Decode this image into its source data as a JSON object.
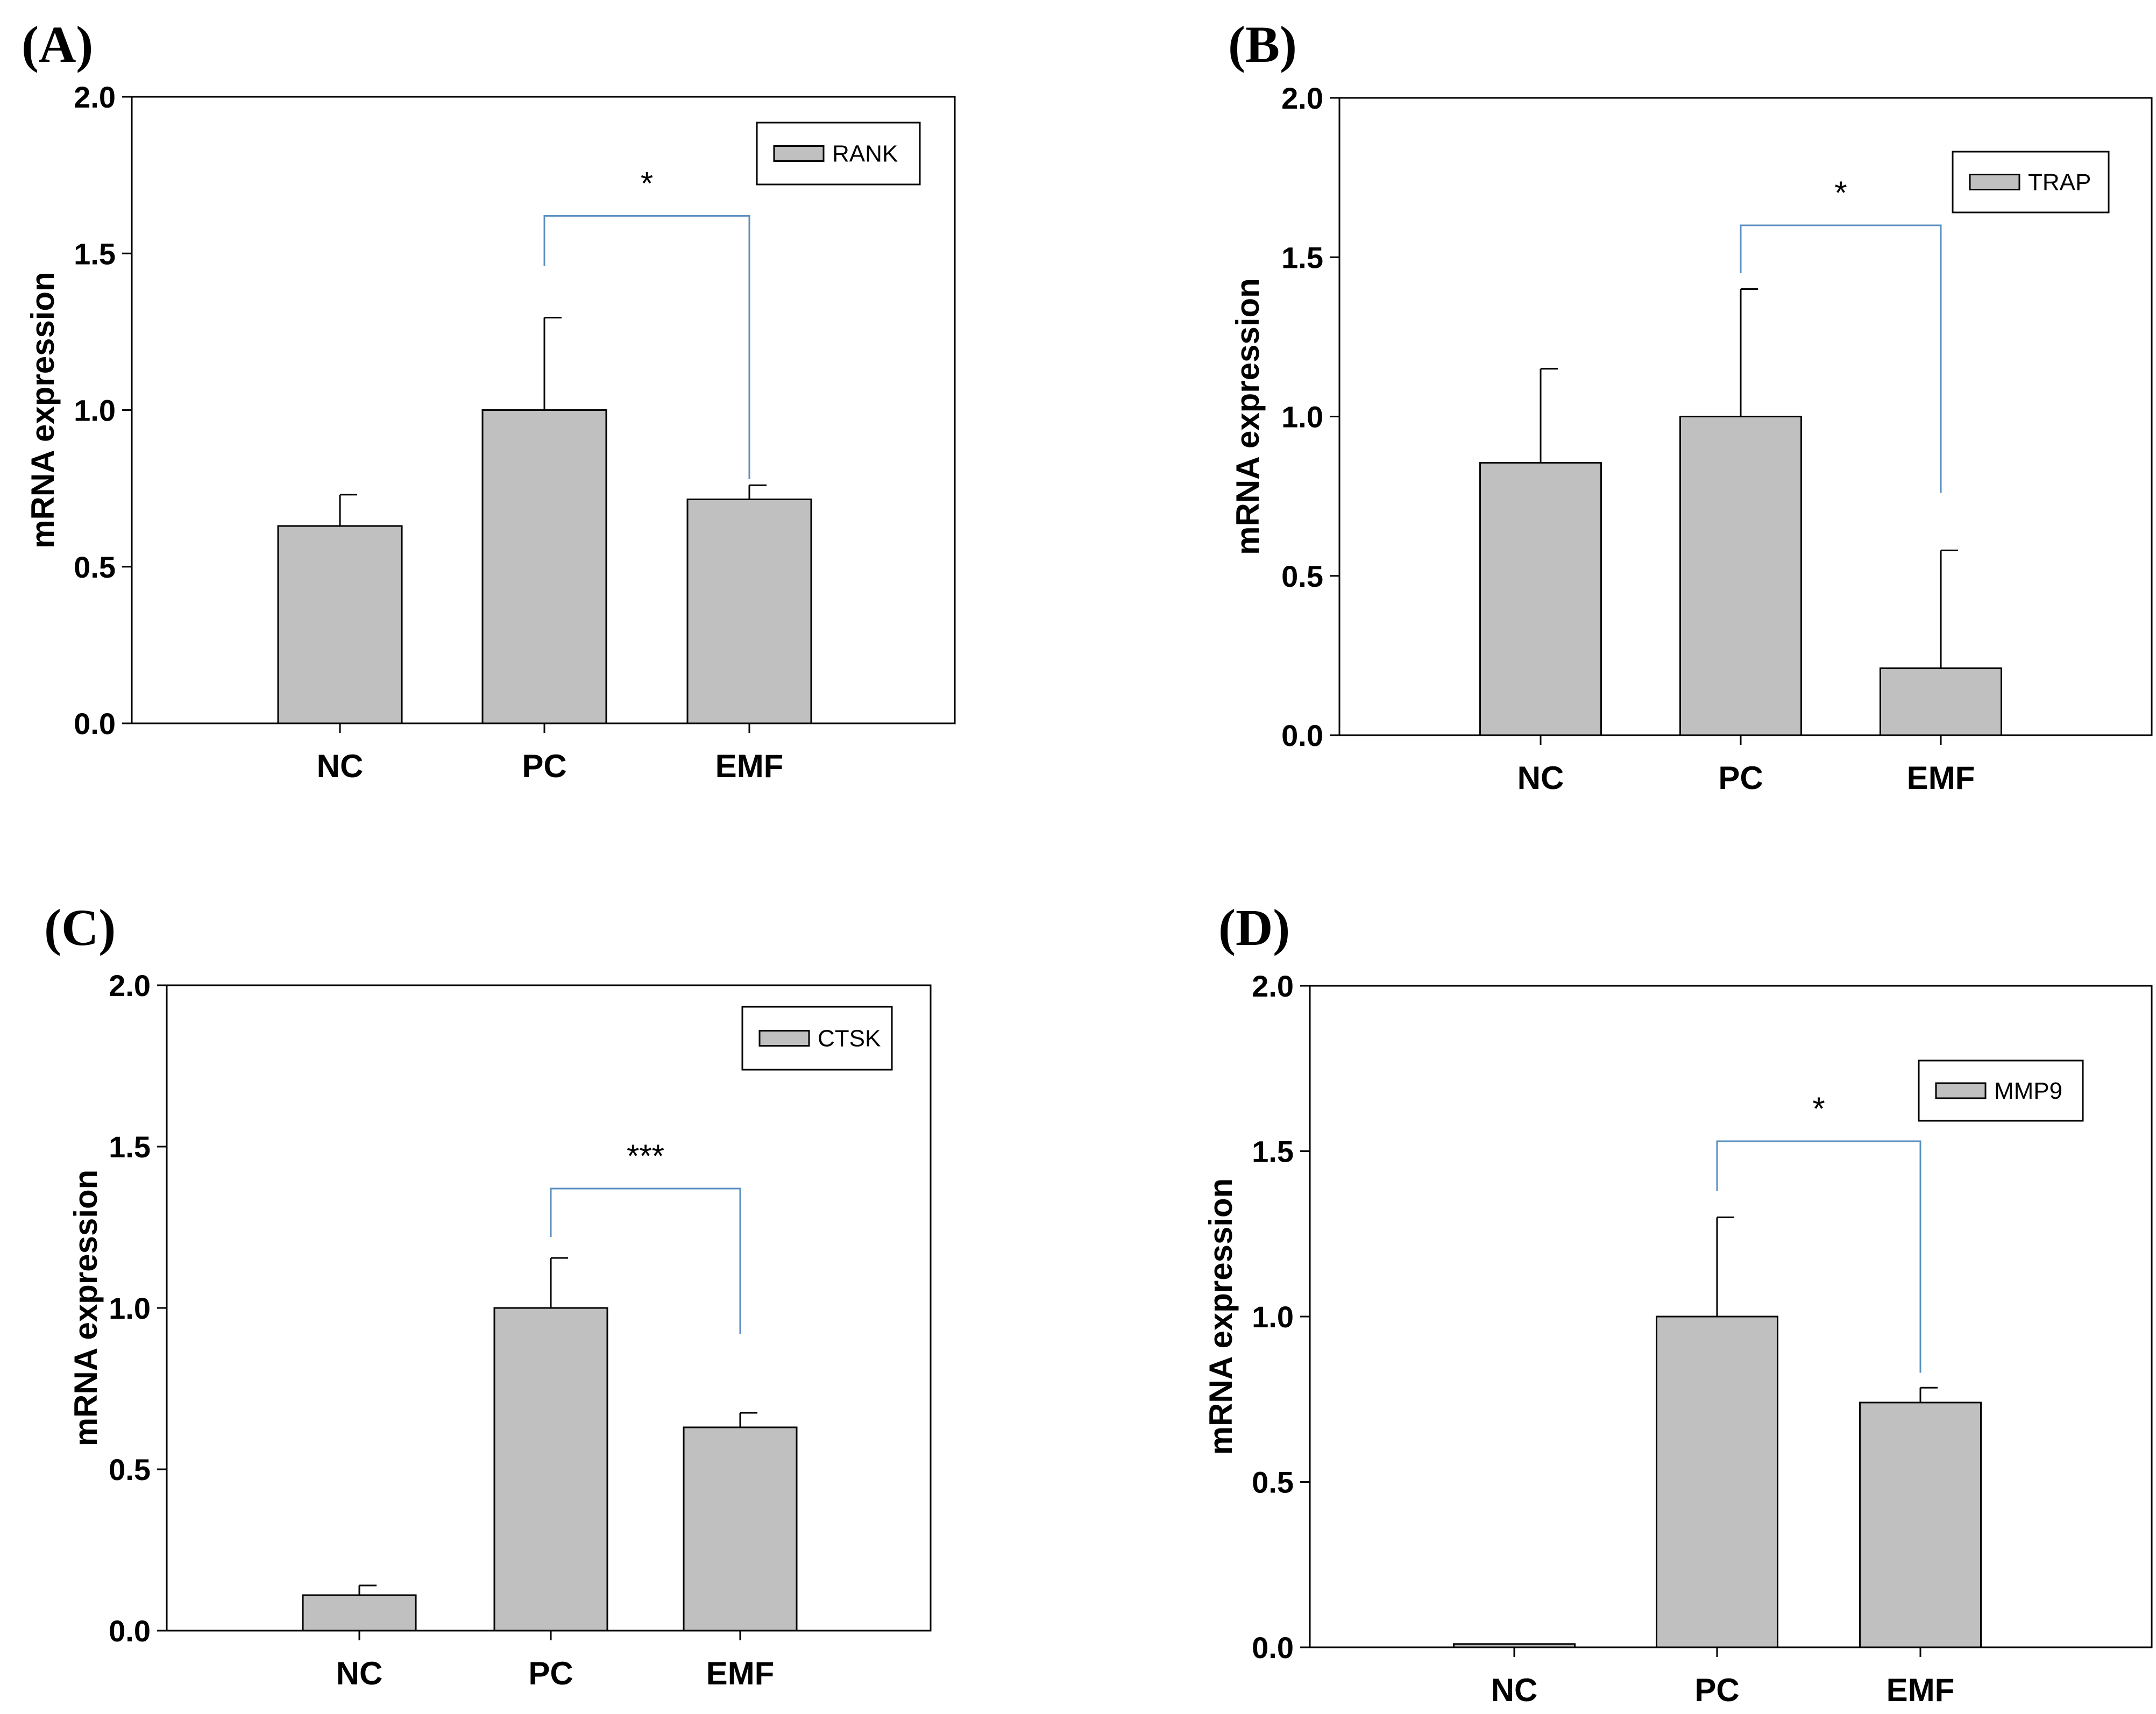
{
  "figure": {
    "background": "#ffffff",
    "bar_fill": "#c0c0c0",
    "bar_stroke": "#000000",
    "bracket_color": "#5b8fc0"
  },
  "chart_data": [
    {
      "panel_label": "(A)",
      "type": "bar",
      "categories": [
        "NC",
        "PC",
        "EMF"
      ],
      "series": [
        {
          "name": "RANK",
          "values": [
            0.63,
            1.0,
            0.715
          ],
          "errors": [
            0.1,
            0.295,
            0.045
          ]
        }
      ],
      "ylabel": "mRNA expression",
      "xlabel": "",
      "ylim": [
        0,
        2.0
      ],
      "yticks": [
        0.0,
        0.5,
        1.0,
        1.5,
        2.0
      ],
      "ytick_labels": [
        "0.0",
        "0.5",
        "1.0",
        "1.5",
        "2.0"
      ],
      "legend_placement": "top-right",
      "significance": {
        "from": "PC",
        "to": "EMF",
        "label": "*",
        "bracket_level": 1.62,
        "left_drop": 1.46,
        "right_drop": 0.78
      }
    },
    {
      "panel_label": "(B)",
      "type": "bar",
      "categories": [
        "NC",
        "PC",
        "EMF"
      ],
      "series": [
        {
          "name": "TRAP",
          "values": [
            0.855,
            1.0,
            0.21
          ],
          "errors": [
            0.295,
            0.4,
            0.37
          ]
        }
      ],
      "ylabel": "mRNA expression",
      "xlabel": "",
      "ylim": [
        0,
        2.0
      ],
      "yticks": [
        0.0,
        0.5,
        1.0,
        1.5,
        2.0
      ],
      "ytick_labels": [
        "0.0",
        "0.5",
        "1.0",
        "1.5",
        "2.0"
      ],
      "legend_placement": "top-right",
      "significance": {
        "from": "PC",
        "to": "EMF",
        "label": "*",
        "bracket_level": 1.6,
        "left_drop": 1.45,
        "right_drop": 0.76
      }
    },
    {
      "panel_label": "(C)",
      "type": "bar",
      "categories": [
        "NC",
        "PC",
        "EMF"
      ],
      "series": [
        {
          "name": "CTSK",
          "values": [
            0.11,
            1.0,
            0.63
          ],
          "errors": [
            0.03,
            0.155,
            0.045
          ]
        }
      ],
      "ylabel": "mRNA expression",
      "xlabel": "",
      "ylim": [
        0,
        2.0
      ],
      "yticks": [
        0.0,
        0.5,
        1.0,
        1.5,
        2.0
      ],
      "ytick_labels": [
        "0.0",
        "0.5",
        "1.0",
        "1.5",
        "2.0"
      ],
      "legend_placement": "top-right",
      "significance": {
        "from": "PC",
        "to": "EMF",
        "label": "***",
        "bracket_level": 1.37,
        "left_drop": 1.22,
        "right_drop": 0.92
      }
    },
    {
      "panel_label": "(D)",
      "type": "bar",
      "categories": [
        "NC",
        "PC",
        "EMF"
      ],
      "series": [
        {
          "name": "MMP9",
          "values": [
            0.01,
            1.0,
            0.74
          ],
          "errors": [
            0.0,
            0.3,
            0.045
          ]
        }
      ],
      "ylabel": "mRNA expression",
      "xlabel": "",
      "ylim": [
        0,
        2.0
      ],
      "yticks": [
        0.0,
        0.5,
        1.0,
        1.5,
        2.0
      ],
      "ytick_labels": [
        "0.0",
        "0.5",
        "1.0",
        "1.5",
        "2.0"
      ],
      "legend_placement": "top-right",
      "significance": {
        "from": "PC",
        "to": "EMF",
        "label": "*",
        "bracket_level": 1.53,
        "left_drop": 1.38,
        "right_drop": 0.83
      }
    }
  ]
}
